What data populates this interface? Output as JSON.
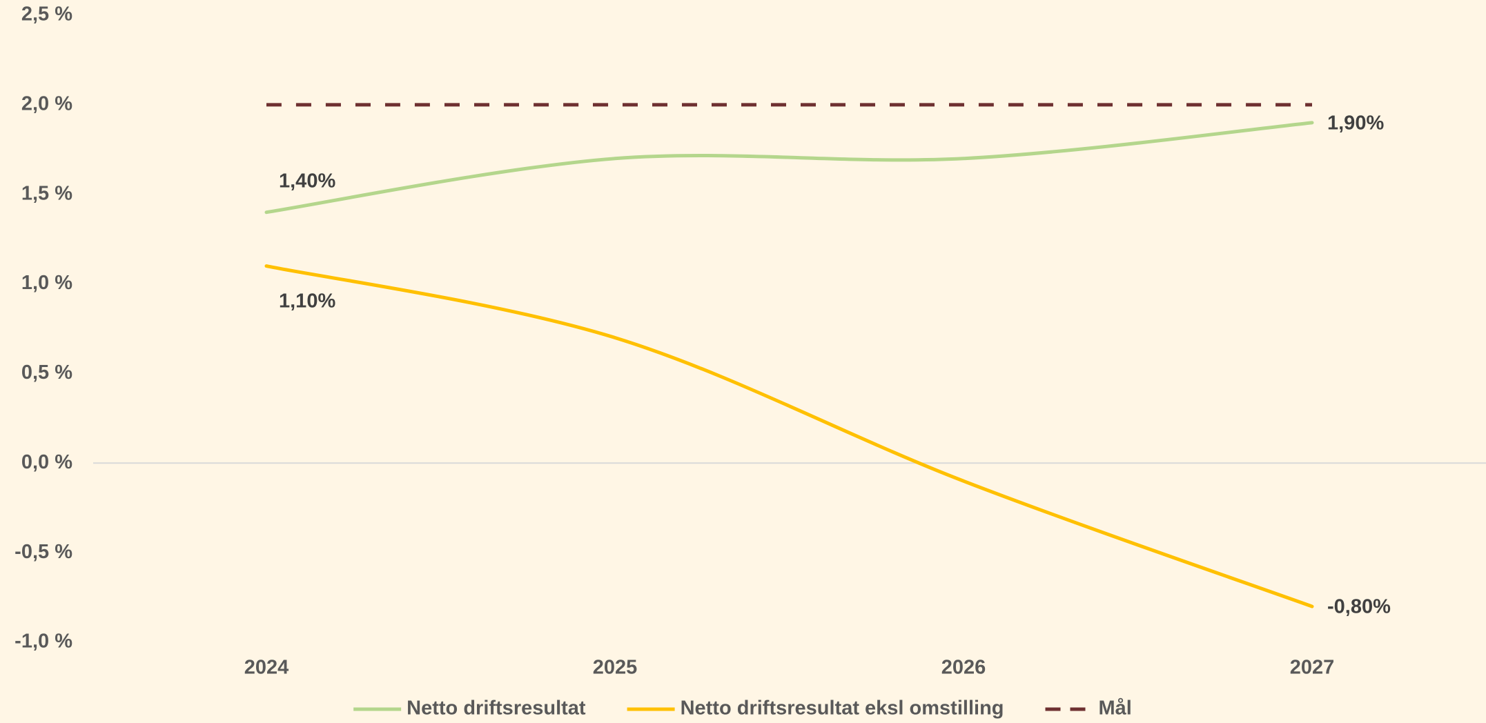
{
  "chart_data": {
    "type": "line",
    "categories": [
      "2024",
      "2025",
      "2026",
      "2027"
    ],
    "series": [
      {
        "name": "Netto driftsresultat",
        "color": "#b4d68c",
        "dash": false,
        "values": [
          1.4,
          1.7,
          1.7,
          1.9
        ],
        "value_labels": [
          "1,40%",
          null,
          null,
          "1,90%"
        ]
      },
      {
        "name": "Netto driftsresultat eksl omstilling",
        "color": "#ffc000",
        "dash": false,
        "values": [
          1.1,
          0.7,
          -0.1,
          -0.8
        ],
        "value_labels": [
          "1,10%",
          null,
          null,
          "-0,80%"
        ]
      },
      {
        "name": "Mål",
        "color": "#6e3030",
        "dash": true,
        "values": [
          2.0,
          2.0,
          2.0,
          2.0
        ]
      }
    ],
    "ylim": [
      -1.0,
      2.5
    ],
    "yticks": [
      {
        "value": -1.0,
        "label": "-1,0 %"
      },
      {
        "value": -0.5,
        "label": "-0,5 %"
      },
      {
        "value": 0,
        "label": "0,0 %"
      },
      {
        "value": 0.5,
        "label": "0,5 %"
      },
      {
        "value": 1.0,
        "label": "1,0 %"
      },
      {
        "value": 1.5,
        "label": "1,5 %"
      },
      {
        "value": 2.0,
        "label": "2,0 %"
      },
      {
        "value": 2.5,
        "label": "2,5 %"
      }
    ],
    "grid": false,
    "legend": "bottom",
    "smooth": true
  }
}
